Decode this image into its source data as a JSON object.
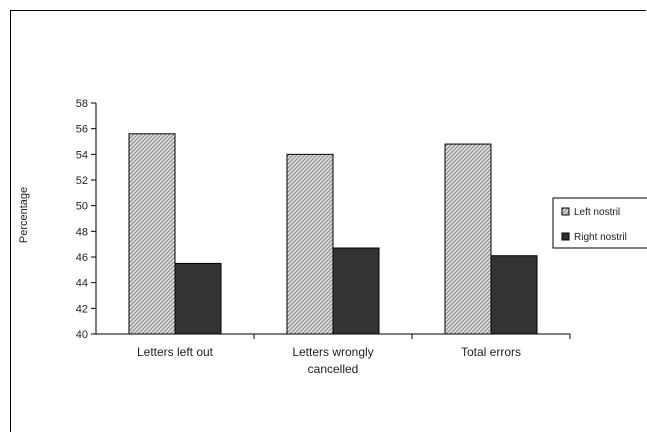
{
  "chart_data": {
    "type": "bar",
    "title": "",
    "xlabel": "",
    "ylabel": "Percentage",
    "ylim": [
      40,
      58
    ],
    "ytick_step": 2,
    "grid": false,
    "legend_position": "right",
    "categories": [
      [
        "Letters left out"
      ],
      [
        "Letters wrongly",
        "cancelled"
      ],
      [
        "Total errors"
      ]
    ],
    "series": [
      {
        "name": "Left nostril",
        "values": [
          55.6,
          54.0,
          54.8
        ],
        "fill": "hatched-light",
        "color": "#c8c8c8"
      },
      {
        "name": "Right nostril",
        "values": [
          45.5,
          46.7,
          46.1
        ],
        "fill": "solid-dark",
        "color": "#333333"
      }
    ]
  }
}
